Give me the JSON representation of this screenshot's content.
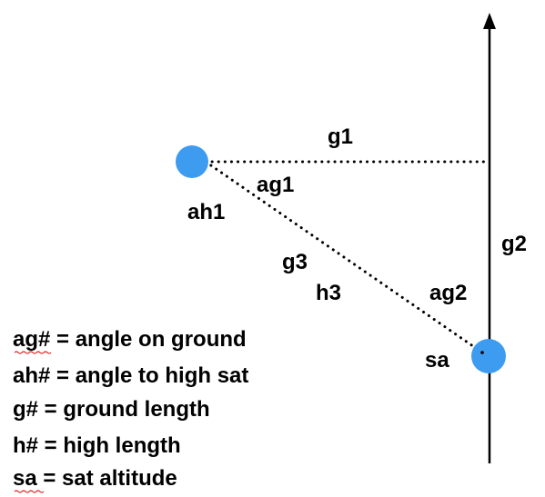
{
  "labels": {
    "g1": "g1",
    "ag1": "ag1",
    "ah1": "ah1",
    "g2": "g2",
    "g3": "g3",
    "h3": "h3",
    "ag2": "ag2",
    "sa": "sa"
  },
  "legend": [
    {
      "key": "ag#",
      "text": "ag# = angle on ground"
    },
    {
      "key": "ah#",
      "text": "ah# = angle to high sat"
    },
    {
      "key": "g#",
      "text": "g# = ground length"
    },
    {
      "key": "h#",
      "text": "h# = high length"
    },
    {
      "key": "sa",
      "text": "sa = sat altitude"
    }
  ],
  "colors": {
    "satellite": "#3d9cf0",
    "line": "#000000",
    "spellcheck": "#e02020"
  }
}
